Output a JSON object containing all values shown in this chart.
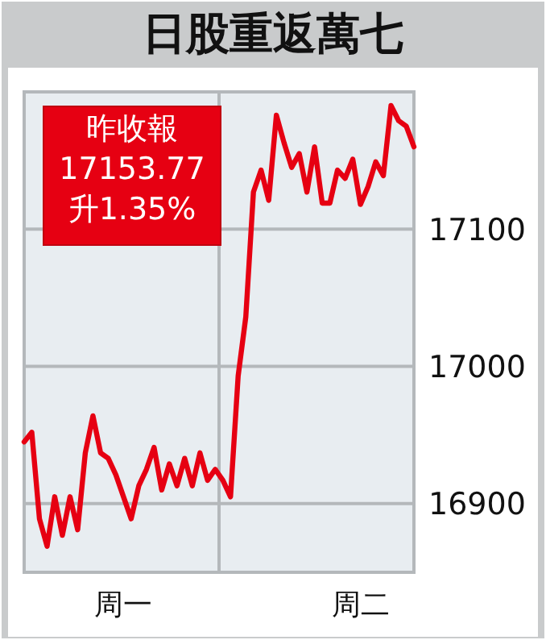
{
  "chart_data": {
    "type": "line",
    "title": "日股重返萬七",
    "annotations": [
      "昨收報",
      "17153.77",
      "升1.35%"
    ],
    "categories": [
      null,
      null,
      null,
      null,
      null,
      null,
      null,
      null,
      null,
      null,
      null,
      null,
      null,
      "周一",
      null,
      null,
      null,
      null,
      null,
      null,
      null,
      null,
      null,
      null,
      null,
      null,
      null,
      null,
      null,
      null,
      null,
      null,
      null,
      null,
      null,
      null,
      null,
      null,
      null,
      null,
      null,
      null,
      null,
      null,
      "周二",
      null,
      null,
      null,
      null,
      null,
      null,
      null
    ],
    "series": [
      {
        "color": "#e60012",
        "values": [
          16945,
          16952,
          16889,
          16869,
          16905,
          16877,
          16905,
          16881,
          16937,
          16964,
          16937,
          16933,
          16921,
          16905,
          16889,
          16913,
          16925,
          16941,
          16910,
          16929,
          16913,
          16933,
          16913,
          16937,
          16917,
          16925,
          16917,
          16905,
          16993,
          17036,
          17127,
          17143,
          17121,
          17183,
          17163,
          17145,
          17155,
          17127,
          17160,
          17119,
          17119,
          17143,
          17137,
          17151,
          17118,
          17131,
          17149,
          17139,
          17190,
          17179,
          17175,
          17160
        ]
      }
    ],
    "ylim": [
      16850,
      17200
    ],
    "yticks": [
      16900,
      17000,
      17100
    ],
    "grid": "y",
    "line_style": "solid",
    "marker": "none"
  }
}
